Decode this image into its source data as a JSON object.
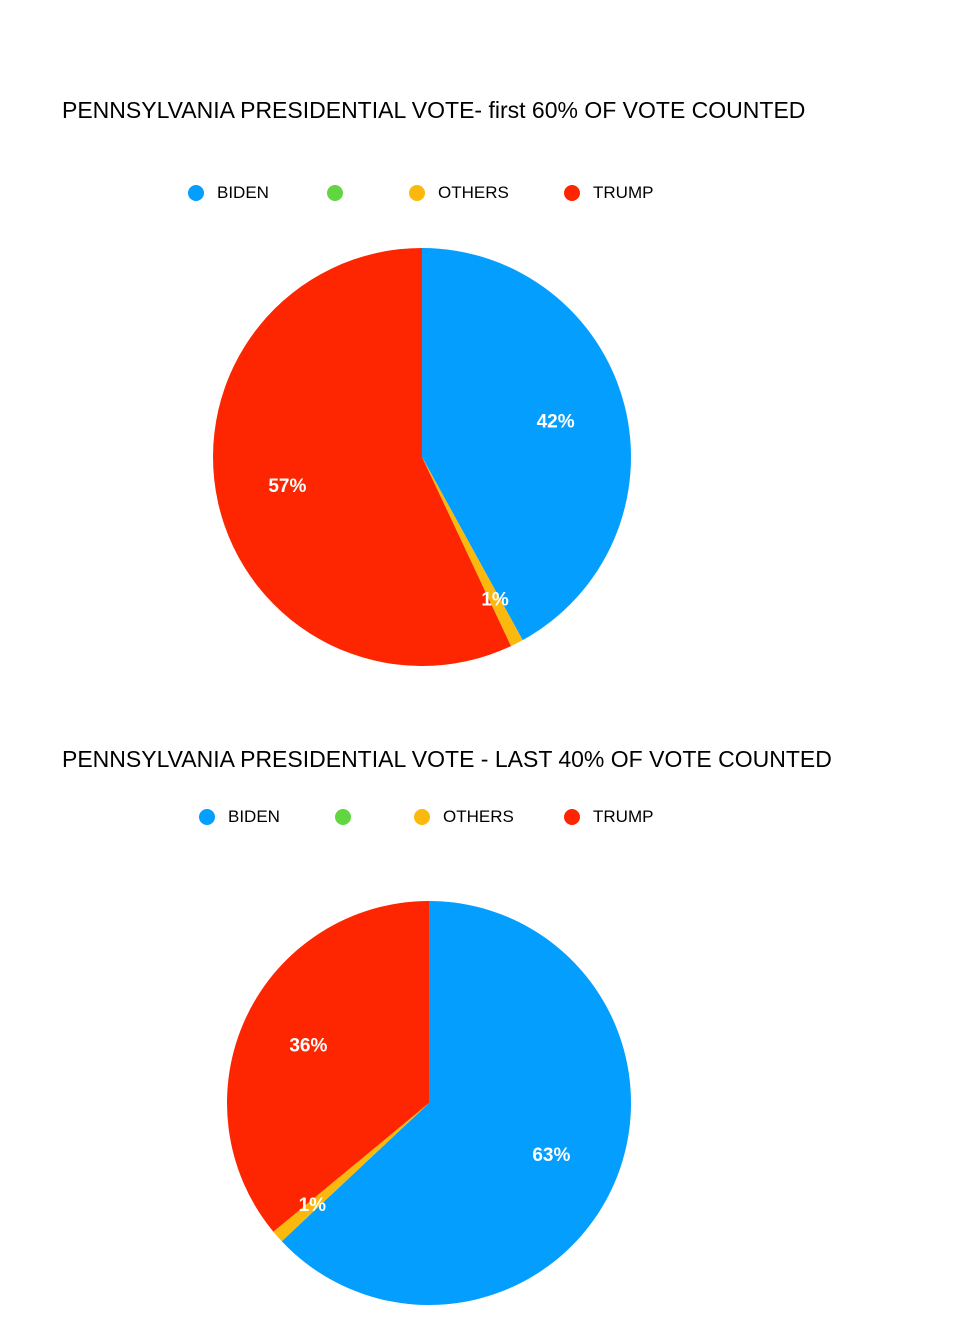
{
  "chart_data": [
    {
      "type": "pie",
      "title": "PENNSYLVANIA PRESIDENTIAL VOTE- first 60% OF VOTE COUNTED",
      "legend": [
        {
          "label": "BIDEN",
          "color": "#049ffe"
        },
        {
          "label": "",
          "color": "#62d640"
        },
        {
          "label": "OTHERS",
          "color": "#fbb90e"
        },
        {
          "label": "TRUMP",
          "color": "#fe2600"
        }
      ],
      "slices": [
        {
          "name": "BIDEN",
          "value": 42,
          "label": "42%",
          "color": "#049ffe"
        },
        {
          "name": "OTHERS",
          "value": 1,
          "label": "1%",
          "color": "#fbb90e"
        },
        {
          "name": "TRUMP",
          "value": 57,
          "label": "57%",
          "color": "#fe2600"
        }
      ],
      "legend_position": "top"
    },
    {
      "type": "pie",
      "title": "PENNSYLVANIA PRESIDENTIAL VOTE - LAST 40% OF VOTE COUNTED",
      "legend": [
        {
          "label": "BIDEN",
          "color": "#049ffe"
        },
        {
          "label": "",
          "color": "#62d640"
        },
        {
          "label": "OTHERS",
          "color": "#fbb90e"
        },
        {
          "label": "TRUMP",
          "color": "#fe2600"
        }
      ],
      "slices": [
        {
          "name": "BIDEN",
          "value": 63,
          "label": "63%",
          "color": "#049ffe"
        },
        {
          "name": "OTHERS",
          "value": 1,
          "label": "1%",
          "color": "#fbb90e"
        },
        {
          "name": "TRUMP",
          "value": 36,
          "label": "36%",
          "color": "#fe2600"
        }
      ],
      "legend_position": "top"
    }
  ]
}
